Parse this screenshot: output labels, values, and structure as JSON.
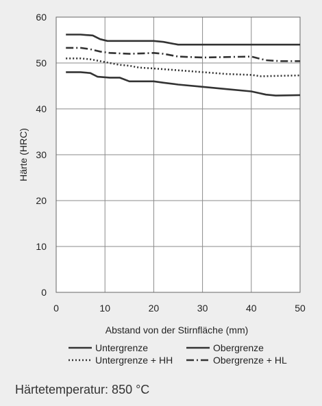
{
  "caption": "Härtetemperatur: 850 °C",
  "chart_data": {
    "type": "line",
    "title": "",
    "xlabel": "Abstand von der Stirnfläche (mm)",
    "ylabel": "Härte (HRC)",
    "xlim": [
      0,
      50
    ],
    "ylim": [
      0,
      60
    ],
    "xticks": [
      0,
      10,
      20,
      30,
      40,
      50
    ],
    "yticks": [
      0,
      10,
      20,
      30,
      40,
      50,
      60
    ],
    "grid": true,
    "legend_position": "below",
    "series": [
      {
        "name": "Untergrenze",
        "style": "solid",
        "color": "#333333",
        "points": [
          [
            2,
            48
          ],
          [
            4,
            48
          ],
          [
            5,
            48
          ],
          [
            7,
            47.8
          ],
          [
            8.5,
            47
          ],
          [
            11,
            46.8
          ],
          [
            13,
            46.8
          ],
          [
            15,
            46
          ],
          [
            17,
            46
          ],
          [
            20,
            46
          ],
          [
            22,
            45.7
          ],
          [
            25,
            45.3
          ],
          [
            30,
            44.8
          ],
          [
            35,
            44.3
          ],
          [
            40,
            43.8
          ],
          [
            43,
            43.1
          ],
          [
            45,
            42.9
          ],
          [
            50,
            43
          ]
        ]
      },
      {
        "name": "Obergrenze",
        "style": "solid",
        "color": "#333333",
        "points": [
          [
            2,
            56.2
          ],
          [
            5,
            56.2
          ],
          [
            7.5,
            56
          ],
          [
            9,
            55.2
          ],
          [
            10.5,
            54.8
          ],
          [
            13,
            54.8
          ],
          [
            20,
            54.8
          ],
          [
            22,
            54.6
          ],
          [
            25,
            54
          ],
          [
            30,
            54
          ],
          [
            40,
            54
          ],
          [
            50,
            54
          ]
        ]
      },
      {
        "name": "Untergrenze + HH",
        "style": "dotted",
        "color": "#333333",
        "points": [
          [
            2,
            51
          ],
          [
            5,
            51
          ],
          [
            7,
            50.8
          ],
          [
            9,
            50.4
          ],
          [
            11,
            50
          ],
          [
            13,
            49.6
          ],
          [
            15,
            49.4
          ],
          [
            17,
            49
          ],
          [
            20,
            48.8
          ],
          [
            25,
            48.4
          ],
          [
            30,
            48
          ],
          [
            35,
            47.6
          ],
          [
            40,
            47.4
          ],
          [
            42,
            47.1
          ],
          [
            50,
            47.3
          ]
        ]
      },
      {
        "name": "Obergrenze + HL",
        "style": "dashdot",
        "color": "#333333",
        "points": [
          [
            2,
            53.3
          ],
          [
            5,
            53.3
          ],
          [
            7,
            53
          ],
          [
            9,
            52.5
          ],
          [
            11,
            52.2
          ],
          [
            15,
            52
          ],
          [
            18,
            52.1
          ],
          [
            20,
            52.2
          ],
          [
            22,
            52
          ],
          [
            25,
            51.4
          ],
          [
            30,
            51.2
          ],
          [
            35,
            51.3
          ],
          [
            40,
            51.4
          ],
          [
            43,
            50.6
          ],
          [
            46,
            50.4
          ],
          [
            50,
            50.4
          ]
        ]
      }
    ]
  }
}
